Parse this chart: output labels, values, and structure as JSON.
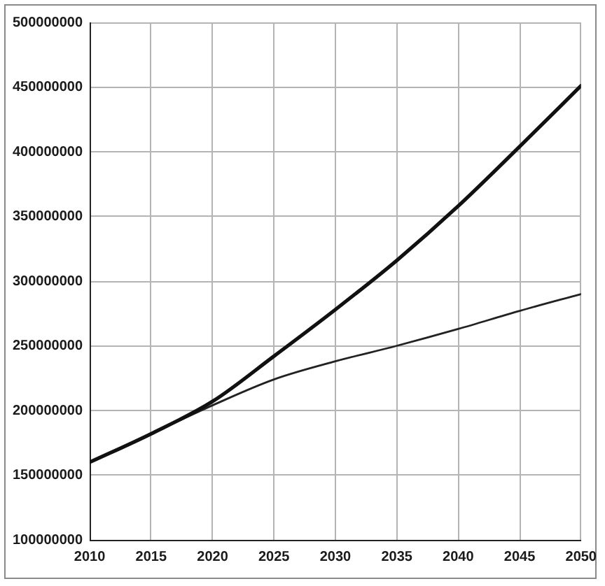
{
  "chart_data": {
    "type": "line",
    "x": [
      2010,
      2015,
      2020,
      2025,
      2030,
      2035,
      2040,
      2045,
      2050
    ],
    "series": [
      {
        "color": "#111111",
        "values": [
          160000000,
          182000000,
          207000000,
          242000000,
          278000000,
          316000000,
          358000000,
          404000000,
          451000000
        ]
      },
      {
        "color": "#222222",
        "values": [
          160000000,
          182000000,
          204000000,
          224000000,
          238000000,
          250000000,
          263000000,
          277000000,
          290000000
        ]
      }
    ],
    "xlim": [
      2010,
      2050
    ],
    "xticks": [
      2010,
      2015,
      2020,
      2025,
      2030,
      2035,
      2040,
      2045,
      2050
    ],
    "ylim": [
      100000000,
      500000000
    ],
    "yticks": [
      100000000,
      150000000,
      200000000,
      250000000,
      300000000,
      350000000,
      400000000,
      450000000,
      500000000
    ],
    "grid": true,
    "legend": false,
    "marker": "none"
  }
}
